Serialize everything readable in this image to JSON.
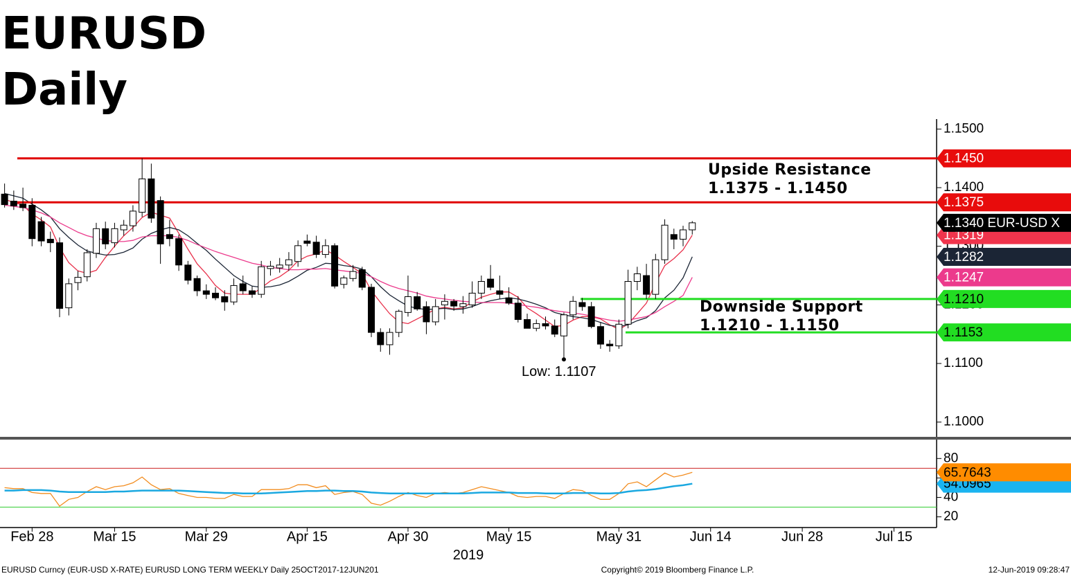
{
  "header": {
    "title": "EURUSD",
    "subtitle": "Daily"
  },
  "chart_data": {
    "type": "candlestick",
    "categories": [
      null,
      null,
      null,
      "Feb 28",
      null,
      null,
      null,
      null,
      null,
      null,
      null,
      null,
      "Mar 15",
      null,
      null,
      null,
      null,
      null,
      null,
      null,
      null,
      null,
      "Mar 29",
      null,
      null,
      null,
      null,
      null,
      null,
      null,
      null,
      null,
      null,
      "Apr 15",
      null,
      null,
      null,
      null,
      null,
      null,
      null,
      null,
      null,
      null,
      "Apr 30",
      null,
      null,
      null,
      null,
      null,
      null,
      null,
      null,
      null,
      null,
      "May 15",
      null,
      null,
      null,
      null,
      null,
      null,
      null,
      null,
      null,
      null,
      null,
      "May 31",
      null,
      null,
      null,
      null,
      null,
      null,
      null,
      null,
      null,
      "Jun 14",
      null,
      null,
      null,
      null,
      null,
      null,
      null,
      null,
      null,
      "Jun 28",
      null,
      null,
      null,
      null,
      null,
      null,
      null,
      null,
      null,
      "Jul 15",
      null,
      null,
      null,
      null
    ],
    "x_year_label": "2019",
    "open": [
      1.1389,
      1.1377,
      1.1372,
      1.137,
      1.1342,
      1.1312,
      1.1306,
      1.1195,
      1.1238,
      1.1248,
      1.1288,
      1.133,
      1.1306,
      1.1328,
      1.1335,
      1.1358,
      1.1415,
      1.1378,
      1.132,
      1.1313,
      1.1268,
      1.1245,
      1.1224,
      1.122,
      1.1214,
      1.1205,
      1.1236,
      1.1224,
      1.1218,
      1.1262,
      1.1263,
      1.1268,
      1.1274,
      1.1309,
      1.1307,
      1.1286,
      1.1301,
      1.1235,
      1.1245,
      1.126,
      1.123,
      1.1153,
      1.1132,
      1.1153,
      1.1187,
      1.1214,
      1.1197,
      1.1171,
      1.12,
      1.1206,
      1.1197,
      1.12,
      1.122,
      1.1244,
      1.1224,
      1.1212,
      1.1203,
      1.1175,
      1.116,
      1.1168,
      1.1164,
      1.1147,
      1.1183,
      1.1204,
      1.1197,
      1.1163,
      1.1133,
      1.113,
      1.1167,
      1.124,
      1.125,
      1.1218,
      1.1277,
      1.132,
      1.1312,
      1.1328,
      null,
      null,
      null,
      null,
      null,
      null,
      null,
      null,
      null,
      null,
      null,
      null,
      null,
      null,
      null,
      null,
      null,
      null,
      null,
      null,
      null,
      null,
      null,
      null,
      null,
      null
    ],
    "high": [
      1.1407,
      1.1395,
      1.14,
      1.1382,
      1.135,
      1.1325,
      1.1315,
      1.1245,
      1.1258,
      1.1295,
      1.134,
      1.1342,
      1.134,
      1.1345,
      1.137,
      1.145,
      1.1441,
      1.1385,
      1.1345,
      1.132,
      1.1275,
      1.125,
      1.1235,
      1.123,
      1.1225,
      1.1245,
      1.125,
      1.1232,
      1.1275,
      1.1275,
      1.128,
      1.129,
      1.131,
      1.132,
      1.1318,
      1.1312,
      1.1305,
      1.125,
      1.1268,
      1.1265,
      1.1236,
      1.116,
      1.116,
      1.1192,
      1.125,
      1.1222,
      1.1206,
      1.121,
      1.1218,
      1.121,
      1.1215,
      1.124,
      1.125,
      1.1268,
      1.125,
      1.123,
      1.1215,
      1.1185,
      1.1175,
      1.118,
      1.1175,
      1.1187,
      1.1215,
      1.1212,
      1.1205,
      1.117,
      1.114,
      1.1175,
      1.126,
      1.1265,
      1.127,
      1.1287,
      1.1346,
      1.133,
      1.1335,
      1.1343,
      null,
      null,
      null,
      null,
      null,
      null,
      null,
      null,
      null,
      null,
      null,
      null,
      null,
      null,
      null,
      null,
      null,
      null,
      null,
      null,
      null,
      null,
      null,
      null,
      null,
      null
    ],
    "low": [
      1.1366,
      1.1362,
      1.136,
      1.13,
      1.13,
      1.129,
      1.1179,
      1.1182,
      1.1225,
      1.124,
      1.128,
      1.1295,
      1.1298,
      1.1318,
      1.1325,
      1.135,
      1.134,
      1.127,
      1.13,
      1.1258,
      1.1235,
      1.1215,
      1.121,
      1.1208,
      1.119,
      1.12,
      1.1218,
      1.1212,
      1.1212,
      1.125,
      1.1255,
      1.1258,
      1.1265,
      1.13,
      1.128,
      1.128,
      1.1228,
      1.1228,
      1.124,
      1.1225,
      1.1145,
      1.112,
      1.1115,
      1.1145,
      1.118,
      1.119,
      1.115,
      1.1165,
      1.1175,
      1.119,
      1.1185,
      1.1195,
      1.121,
      1.1225,
      1.121,
      1.12,
      1.117,
      1.116,
      1.1155,
      1.1158,
      1.1145,
      1.1107,
      1.1175,
      1.119,
      1.116,
      1.1125,
      1.112,
      1.1125,
      1.116,
      1.1225,
      1.121,
      1.121,
      1.127,
      1.1295,
      1.13,
      1.132,
      null,
      null,
      null,
      null,
      null,
      null,
      null,
      null,
      null,
      null,
      null,
      null,
      null,
      null,
      null,
      null,
      null,
      null,
      null,
      null,
      null,
      null,
      null,
      null,
      null,
      null
    ],
    "close": [
      1.1371,
      1.1369,
      1.1366,
      1.1313,
      1.1309,
      1.1306,
      1.1194,
      1.1236,
      1.1247,
      1.1289,
      1.133,
      1.1304,
      1.133,
      1.1336,
      1.136,
      1.1415,
      1.1348,
      1.1304,
      1.1313,
      1.1268,
      1.1242,
      1.1224,
      1.1218,
      1.1212,
      1.1205,
      1.1233,
      1.1224,
      1.1218,
      1.1265,
      1.1266,
      1.1268,
      1.1277,
      1.1301,
      1.1305,
      1.1286,
      1.1301,
      1.1232,
      1.1246,
      1.1257,
      1.123,
      1.1153,
      1.1132,
      1.1153,
      1.1189,
      1.1214,
      1.1193,
      1.1171,
      1.1197,
      1.1206,
      1.1198,
      1.1202,
      1.122,
      1.124,
      1.123,
      1.1218,
      1.1203,
      1.1175,
      1.116,
      1.1168,
      1.1164,
      1.115,
      1.1183,
      1.1206,
      1.1197,
      1.1163,
      1.1133,
      1.113,
      1.1167,
      1.124,
      1.1253,
      1.1218,
      1.1277,
      1.1336,
      1.1312,
      1.1328,
      1.134,
      null,
      null,
      null,
      null,
      null,
      null,
      null,
      null,
      null,
      null,
      null,
      null,
      null,
      null,
      null,
      null,
      null,
      null,
      null,
      null,
      null,
      null,
      null,
      null,
      null,
      null
    ],
    "up_color": "#ffffff",
    "down_color": "#000000",
    "moving_averages": [
      {
        "color": "#e8304a",
        "values": [
          1.138,
          1.1375,
          1.137,
          1.1355,
          1.1345,
          1.1333,
          1.1298,
          1.1272,
          1.1258,
          1.1254,
          1.1259,
          1.1281,
          1.13,
          1.1318,
          1.1332,
          1.1349,
          1.1358,
          1.1353,
          1.1348,
          1.1322,
          1.1295,
          1.127,
          1.1253,
          1.1233,
          1.122,
          1.1218,
          1.1218,
          1.1218,
          1.1229,
          1.1241,
          1.1248,
          1.1259,
          1.1275,
          1.1283,
          1.1287,
          1.1294,
          1.1285,
          1.1274,
          1.1264,
          1.1253,
          1.1224,
          1.1204,
          1.1185,
          1.1171,
          1.1168,
          1.1176,
          1.1184,
          1.1193,
          1.1196,
          1.1193,
          1.1195,
          1.1205,
          1.1213,
          1.1218,
          1.1222,
          1.1222,
          1.1213,
          1.1195,
          1.1185,
          1.1174,
          1.1163,
          1.1165,
          1.1174,
          1.118,
          1.118,
          1.1176,
          1.1166,
          1.1158,
          1.1167,
          1.1185,
          1.1203,
          1.1237,
          1.1267,
          1.1279,
          1.1294,
          1.1319,
          null,
          null,
          null,
          null,
          null,
          null,
          null,
          null,
          null,
          null,
          null,
          null,
          null,
          null,
          null,
          null,
          null,
          null,
          null,
          null,
          null,
          null,
          null,
          null,
          null,
          null
        ]
      },
      {
        "color": "#1b2535",
        "values": [
          1.139,
          1.1386,
          1.1382,
          1.1372,
          1.1362,
          1.135,
          1.133,
          1.1315,
          1.1302,
          1.1292,
          1.1288,
          1.1285,
          1.1286,
          1.129,
          1.1297,
          1.1312,
          1.1322,
          1.1328,
          1.1332,
          1.1328,
          1.1318,
          1.1305,
          1.1293,
          1.1278,
          1.1264,
          1.125,
          1.124,
          1.1232,
          1.123,
          1.1231,
          1.1234,
          1.124,
          1.1249,
          1.1259,
          1.1264,
          1.1271,
          1.127,
          1.1267,
          1.1265,
          1.1261,
          1.1248,
          1.1231,
          1.1217,
          1.1207,
          1.1198,
          1.1194,
          1.1192,
          1.1193,
          1.1194,
          1.1192,
          1.1193,
          1.1197,
          1.1203,
          1.1207,
          1.121,
          1.1212,
          1.121,
          1.1206,
          1.1201,
          1.1195,
          1.1187,
          1.1183,
          1.118,
          1.1178,
          1.1175,
          1.117,
          1.1165,
          1.1163,
          1.1166,
          1.1173,
          1.1178,
          1.119,
          1.1212,
          1.1225,
          1.1246,
          1.1282,
          null,
          null,
          null,
          null,
          null,
          null,
          null,
          null,
          null,
          null,
          null,
          null,
          null,
          null,
          null,
          null,
          null,
          null,
          null,
          null,
          null,
          null,
          null,
          null,
          null,
          null
        ]
      },
      {
        "color": "#ec3a8c",
        "values": [
          1.137,
          1.1368,
          1.1366,
          1.1362,
          1.1357,
          1.135,
          1.134,
          1.1332,
          1.1324,
          1.1318,
          1.1314,
          1.131,
          1.1308,
          1.1308,
          1.131,
          1.1316,
          1.1318,
          1.1318,
          1.1318,
          1.1315,
          1.131,
          1.1303,
          1.1297,
          1.1291,
          1.1286,
          1.1281,
          1.1276,
          1.1271,
          1.1268,
          1.1264,
          1.1262,
          1.126,
          1.126,
          1.1261,
          1.1261,
          1.1262,
          1.126,
          1.1258,
          1.1256,
          1.1254,
          1.1248,
          1.124,
          1.1233,
          1.1228,
          1.1224,
          1.122,
          1.1215,
          1.1212,
          1.121,
          1.1208,
          1.1206,
          1.1205,
          1.1204,
          1.1204,
          1.1204,
          1.1203,
          1.1201,
          1.1198,
          1.1196,
          1.1193,
          1.119,
          1.1188,
          1.1186,
          1.1184,
          1.1181,
          1.1177,
          1.1174,
          1.1172,
          1.1174,
          1.1177,
          1.118,
          1.1187,
          1.1197,
          1.1206,
          1.1216,
          1.1247,
          null,
          null,
          null,
          null,
          null,
          null,
          null,
          null,
          null,
          null,
          null,
          null,
          null,
          null,
          null,
          null,
          null,
          null,
          null,
          null,
          null,
          null,
          null,
          null,
          null,
          null
        ]
      }
    ],
    "ylim": [
      1.0976,
      1.1517
    ],
    "yticks": [
      {
        "value": 1.1,
        "label": "1.1000"
      },
      {
        "value": 1.11,
        "label": "1.1100"
      },
      {
        "value": 1.12,
        "label": "1.1200"
      },
      {
        "value": 1.13,
        "label": "1.1300"
      },
      {
        "value": 1.14,
        "label": "1.1400"
      },
      {
        "value": 1.15,
        "label": "1.1500"
      }
    ],
    "levels": [
      {
        "value": 1.145,
        "color": "#e00000"
      },
      {
        "value": 1.1375,
        "color": "#e00000"
      },
      {
        "value": 1.121,
        "color": "#22dd22"
      },
      {
        "value": 1.1153,
        "color": "#22dd22"
      }
    ],
    "price_tags": [
      {
        "value": 1.145,
        "label": "1.1450",
        "color": "#e80c0c"
      },
      {
        "value": 1.1375,
        "label": "1.1375",
        "color": "#e80c0c"
      },
      {
        "value": 1.1319,
        "label": "1.1319",
        "color": "#f0344c"
      },
      {
        "value": 1.134,
        "label": "1.1340 EUR-USD X",
        "color": "#000000"
      },
      {
        "value": 1.1282,
        "label": "1.1282",
        "color": "#1b2535"
      },
      {
        "value": 1.1247,
        "label": "1.1247",
        "color": "#ec3a8c"
      },
      {
        "value": 1.121,
        "label": "1.1210",
        "color": "#22dd22"
      },
      {
        "value": 1.1153,
        "label": "1.1153",
        "color": "#22dd22"
      }
    ],
    "annotations": {
      "resistance_title": "Upside Resistance",
      "resistance_range": "1.1375 - 1.1450",
      "support_title": "Downside Support",
      "support_range": "1.1210 - 1.1150"
    },
    "low_marker": {
      "value": 1.1107,
      "label": "Low: 1.1107"
    },
    "rsi": {
      "type": "line",
      "ylim": [
        9,
        98
      ],
      "yticks": [
        20,
        40,
        60,
        80
      ],
      "thresholds": [
        {
          "value": 70,
          "color": "#cc2222"
        },
        {
          "value": 30,
          "color": "#33cc33"
        }
      ],
      "series": [
        {
          "color": "#f28c1e",
          "values": [
            50,
            49,
            49,
            45,
            44,
            44,
            31,
            38,
            40,
            46,
            51,
            48,
            51,
            52,
            55,
            61,
            53,
            48,
            49,
            44,
            42,
            40,
            40,
            39,
            39,
            43,
            41,
            41,
            48,
            48,
            48,
            49,
            53,
            53,
            50,
            52,
            43,
            45,
            46,
            43,
            34,
            32,
            36,
            41,
            45,
            42,
            40,
            44,
            45,
            44,
            45,
            48,
            51,
            49,
            47,
            45,
            41,
            40,
            41,
            41,
            39,
            44,
            48,
            47,
            42,
            38,
            38,
            44,
            54,
            56,
            51,
            58,
            65,
            61,
            63,
            65.76,
            null,
            null,
            null,
            null,
            null,
            null,
            null,
            null,
            null,
            null,
            null,
            null,
            null,
            null,
            null,
            null,
            null,
            null,
            null,
            null,
            null,
            null,
            null,
            null,
            null,
            null
          ]
        },
        {
          "color": "#1aa8e0",
          "values": [
            47,
            47,
            47.5,
            47.5,
            47.5,
            47,
            46,
            45.5,
            45.5,
            45.5,
            45.5,
            45.5,
            46,
            46,
            46.5,
            47,
            47,
            47,
            47,
            47,
            46.5,
            46,
            45.5,
            45,
            44.5,
            44.5,
            44,
            44,
            44,
            44.5,
            45,
            45.5,
            46,
            46.5,
            46.5,
            47,
            47,
            46.5,
            46.5,
            46,
            45,
            44.5,
            44,
            44,
            44,
            44,
            44,
            44,
            44,
            44,
            44,
            44.5,
            45,
            45,
            45,
            45,
            44.5,
            44.5,
            44.5,
            44,
            44,
            44,
            44.5,
            44.5,
            44.5,
            44,
            44,
            44.5,
            46,
            47,
            47.5,
            48.5,
            50,
            51.5,
            52.5,
            54.1,
            null,
            null,
            null,
            null,
            null,
            null,
            null,
            null,
            null,
            null,
            null,
            null,
            null,
            null,
            null,
            null,
            null,
            null,
            null,
            null,
            null,
            null,
            null,
            null,
            null,
            null
          ]
        }
      ],
      "tags": [
        {
          "value": 54.0965,
          "label": "54.0965",
          "color": "#1ab4f0"
        },
        {
          "value": 65.7643,
          "label": "65.7643",
          "color": "#ff8c00"
        }
      ]
    }
  },
  "footer": {
    "left": "EURUSD Curncy (EUR-USD X-RATE) EURUSD LONG TERM WEEKLY  Daily 25OCT2017-12JUN201",
    "center": "Copyright© 2019 Bloomberg Finance L.P.",
    "right": "12-Jun-2019 09:28:47"
  }
}
